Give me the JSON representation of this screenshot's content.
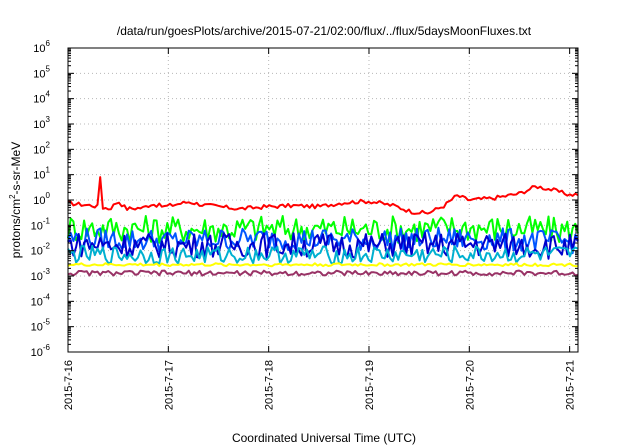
{
  "chart_data": {
    "type": "line",
    "title": "/data/run/goesPlots/archive/2015-07-21/02:00/flux/../flux/5daysMoonFluxes.txt",
    "xlabel": "Coordinated Universal Time (UTC)",
    "ylabel": {
      "prefix": "protons/cm",
      "sup": "2",
      "suffix": "-s-sr-MeV"
    },
    "y_scale": "log",
    "ylim": [
      1e-06,
      1000000.0
    ],
    "y_ticks": [
      {
        "base": "10",
        "exp": "-6",
        "value": 1e-06
      },
      {
        "base": "10",
        "exp": "-5",
        "value": 1e-05
      },
      {
        "base": "10",
        "exp": "-4",
        "value": 0.0001
      },
      {
        "base": "10",
        "exp": "-3",
        "value": 0.001
      },
      {
        "base": "10",
        "exp": "-2",
        "value": 0.01
      },
      {
        "base": "10",
        "exp": "-1",
        "value": 0.1
      },
      {
        "base": "10",
        "exp": "0",
        "value": 1
      },
      {
        "base": "10",
        "exp": "1",
        "value": 10
      },
      {
        "base": "10",
        "exp": "2",
        "value": 100
      },
      {
        "base": "10",
        "exp": "3",
        "value": 1000
      },
      {
        "base": "10",
        "exp": "4",
        "value": 10000
      },
      {
        "base": "10",
        "exp": "5",
        "value": 100000
      },
      {
        "base": "10",
        "exp": "6",
        "value": 1000000
      }
    ],
    "x_range": [
      "2015-07-16 00:00",
      "2015-07-21 02:00"
    ],
    "x_ticks": [
      "2015-7-16",
      "2015-7-17",
      "2015-7-18",
      "2015-7-19",
      "2015-7-20",
      "2015-7-21"
    ],
    "grid": true,
    "series": [
      {
        "color": "#ff0000",
        "points": [
          [
            "2015-07-16 00:00",
            0.75
          ],
          [
            "2015-07-16 06:00",
            0.6
          ],
          [
            "2015-07-16 10:00",
            0.45
          ],
          [
            "2015-07-16 12:00",
            0.9
          ],
          [
            "2015-07-16 14:00",
            0.45
          ],
          [
            "2015-07-16 18:00",
            0.5
          ],
          [
            "2015-07-16 20:00",
            0.7
          ],
          [
            "2015-07-16 23:00",
            0.55
          ],
          [
            "2015-07-17 05:00",
            0.85
          ],
          [
            "2015-07-17 08:00",
            0.65
          ],
          [
            "2015-07-17 12:00",
            0.55
          ],
          [
            "2015-07-17 17:00",
            0.45
          ],
          [
            "2015-07-18 00:00",
            0.55
          ],
          [
            "2015-07-18 06:00",
            0.6
          ],
          [
            "2015-07-18 12:00",
            0.55
          ],
          [
            "2015-07-18 18:00",
            0.8
          ],
          [
            "2015-07-19 00:00",
            0.9
          ],
          [
            "2015-07-19 06:00",
            0.6
          ],
          [
            "2015-07-19 10:00",
            0.35
          ],
          [
            "2015-07-19 14:00",
            0.3
          ],
          [
            "2015-07-19 18:00",
            0.6
          ],
          [
            "2015-07-19 21:00",
            1.5
          ],
          [
            "2015-07-20 00:00",
            1.0
          ],
          [
            "2015-07-20 06:00",
            1.2
          ],
          [
            "2015-07-20 12:00",
            1.8
          ],
          [
            "2015-07-20 16:00",
            3.5
          ],
          [
            "2015-07-20 20:00",
            2.5
          ],
          [
            "2015-07-21 00:00",
            1.6
          ],
          [
            "2015-07-21 02:00",
            1.7
          ]
        ],
        "spikes": [
          [
            "2015-07-16 08:00",
            8.0
          ]
        ]
      },
      {
        "color": "#00ff00",
        "points": [
          [
            "2015-07-16 00:00",
            0.08
          ],
          [
            "2015-07-17 00:00",
            0.07
          ],
          [
            "2015-07-18 00:00",
            0.075
          ],
          [
            "2015-07-19 00:00",
            0.07
          ],
          [
            "2015-07-20 00:00",
            0.08
          ],
          [
            "2015-07-21 02:00",
            0.06
          ]
        ]
      },
      {
        "color": "#0055ff",
        "points": [
          [
            "2015-07-16 00:00",
            0.03
          ],
          [
            "2015-07-17 00:00",
            0.025
          ],
          [
            "2015-07-18 00:00",
            0.03
          ],
          [
            "2015-07-19 00:00",
            0.027
          ],
          [
            "2015-07-20 00:00",
            0.03
          ],
          [
            "2015-07-21 02:00",
            0.022
          ]
        ]
      },
      {
        "color": "#0000cc",
        "points": [
          [
            "2015-07-16 00:00",
            0.018
          ],
          [
            "2015-07-17 00:00",
            0.016
          ],
          [
            "2015-07-18 00:00",
            0.017
          ],
          [
            "2015-07-19 00:00",
            0.016
          ],
          [
            "2015-07-20 00:00",
            0.018
          ],
          [
            "2015-07-21 02:00",
            0.014
          ]
        ]
      },
      {
        "color": "#00b0d0",
        "points": [
          [
            "2015-07-16 00:00",
            0.007
          ],
          [
            "2015-07-17 00:00",
            0.0065
          ],
          [
            "2015-07-18 00:00",
            0.007
          ],
          [
            "2015-07-19 00:00",
            0.0065
          ],
          [
            "2015-07-20 00:00",
            0.007
          ],
          [
            "2015-07-21 02:00",
            0.0065
          ]
        ]
      },
      {
        "color": "#ffff00",
        "points": [
          [
            "2015-07-16 00:00",
            0.0028
          ],
          [
            "2015-07-17 00:00",
            0.0028
          ],
          [
            "2015-07-18 00:00",
            0.0028
          ],
          [
            "2015-07-19 00:00",
            0.0028
          ],
          [
            "2015-07-20 00:00",
            0.0028
          ],
          [
            "2015-07-21 02:00",
            0.0028
          ]
        ]
      },
      {
        "color": "#993366",
        "points": [
          [
            "2015-07-16 00:00",
            0.0013
          ],
          [
            "2015-07-17 00:00",
            0.0013
          ],
          [
            "2015-07-18 00:00",
            0.0013
          ],
          [
            "2015-07-19 00:00",
            0.0013
          ],
          [
            "2015-07-20 00:00",
            0.0013
          ],
          [
            "2015-07-21 02:00",
            0.0013
          ]
        ]
      }
    ]
  }
}
